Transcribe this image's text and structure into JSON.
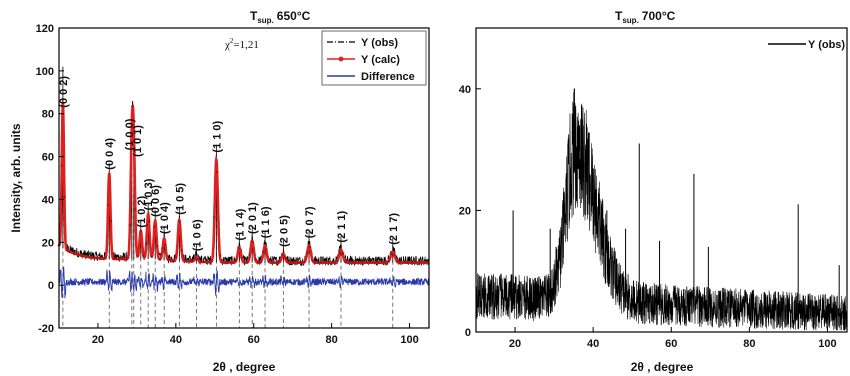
{
  "chart_data": [
    {
      "type": "line",
      "title_main": "T",
      "title_sub": "sup.",
      "title_rest": "650°C",
      "xlabel": "2θ , degree",
      "ylabel": "Intensity, arb. units",
      "xlim": [
        10,
        105
      ],
      "ylim": [
        -20,
        120
      ],
      "xticks": [
        20,
        40,
        60,
        80,
        100
      ],
      "yticks": [
        -20,
        0,
        20,
        40,
        60,
        80,
        100,
        120
      ],
      "chi_label": "χ",
      "chi_exp": "2",
      "chi_value": "=1,21",
      "legend_position": "top-right",
      "series": [
        {
          "name": "Y (obs)",
          "color": "#000000",
          "style": "dash-dot"
        },
        {
          "name": "Y (calc)",
          "color": "#e0201e",
          "style": "line-marker"
        },
        {
          "name": "Difference",
          "color": "#2a3aa8",
          "style": "line"
        }
      ],
      "peaks": [
        {
          "x": 11.0,
          "h": 80,
          "label": "(0 0 2)"
        },
        {
          "x": 22.9,
          "h": 52,
          "label": "(0 0 4)"
        },
        {
          "x": 28.7,
          "h": 61,
          "label": "(1 0 0)"
        },
        {
          "x": 29.2,
          "h": 58,
          "label": "(1 0 1)"
        },
        {
          "x": 31.0,
          "h": 25,
          "label": "(1 0 2)"
        },
        {
          "x": 32.9,
          "h": 33,
          "label": "(1 0 3)"
        },
        {
          "x": 34.7,
          "h": 30,
          "label": "(0 0 6)"
        },
        {
          "x": 37.0,
          "h": 22,
          "label": "(1 0 4)"
        },
        {
          "x": 40.9,
          "h": 31,
          "label": "(1 0 5)"
        },
        {
          "x": 45.3,
          "h": 14,
          "label": "(1 0 6)"
        },
        {
          "x": 50.4,
          "h": 60,
          "label": "(1 1 0)"
        },
        {
          "x": 56.3,
          "h": 19,
          "label": "(1 1 4)"
        },
        {
          "x": 59.6,
          "h": 22,
          "label": "(2 0 1)"
        },
        {
          "x": 62.9,
          "h": 20,
          "label": "(1 1 6)"
        },
        {
          "x": 67.6,
          "h": 16,
          "label": "(2 0 5)"
        },
        {
          "x": 74.2,
          "h": 20,
          "label": "(2 0 7)"
        },
        {
          "x": 82.4,
          "h": 18,
          "label": "(2 1 1)"
        },
        {
          "x": 95.7,
          "h": 17,
          "label": "(2 1 7)"
        }
      ]
    },
    {
      "type": "line",
      "title_main": "T",
      "title_sub": "sup.",
      "title_rest": "700°C",
      "xlabel": "2θ , degree",
      "ylabel": "",
      "xlim": [
        10,
        105
      ],
      "ylim": [
        0,
        50
      ],
      "xticks": [
        20,
        40,
        60,
        80,
        100
      ],
      "yticks": [
        0,
        20,
        40
      ],
      "legend_position": "top-right",
      "series": [
        {
          "name": "Y (obs)",
          "color": "#000000",
          "style": "line"
        }
      ],
      "broad_peak": {
        "center": 35.5,
        "height": 25,
        "width_left": 3.5,
        "width_right": 7.5
      },
      "baseline": {
        "at_start": 6,
        "at_end": 3
      },
      "spikes": [
        {
          "x": 19.5,
          "h": 20
        },
        {
          "x": 29.0,
          "h": 17
        },
        {
          "x": 30.5,
          "h": 14
        },
        {
          "x": 35.2,
          "h": 40
        },
        {
          "x": 36.5,
          "h": 34
        },
        {
          "x": 43.5,
          "h": 20
        },
        {
          "x": 48.3,
          "h": 17
        },
        {
          "x": 51.8,
          "h": 31
        },
        {
          "x": 57.0,
          "h": 15
        },
        {
          "x": 65.8,
          "h": 26
        },
        {
          "x": 69.5,
          "h": 14
        },
        {
          "x": 92.5,
          "h": 21
        },
        {
          "x": 103.0,
          "h": 11
        }
      ]
    }
  ]
}
